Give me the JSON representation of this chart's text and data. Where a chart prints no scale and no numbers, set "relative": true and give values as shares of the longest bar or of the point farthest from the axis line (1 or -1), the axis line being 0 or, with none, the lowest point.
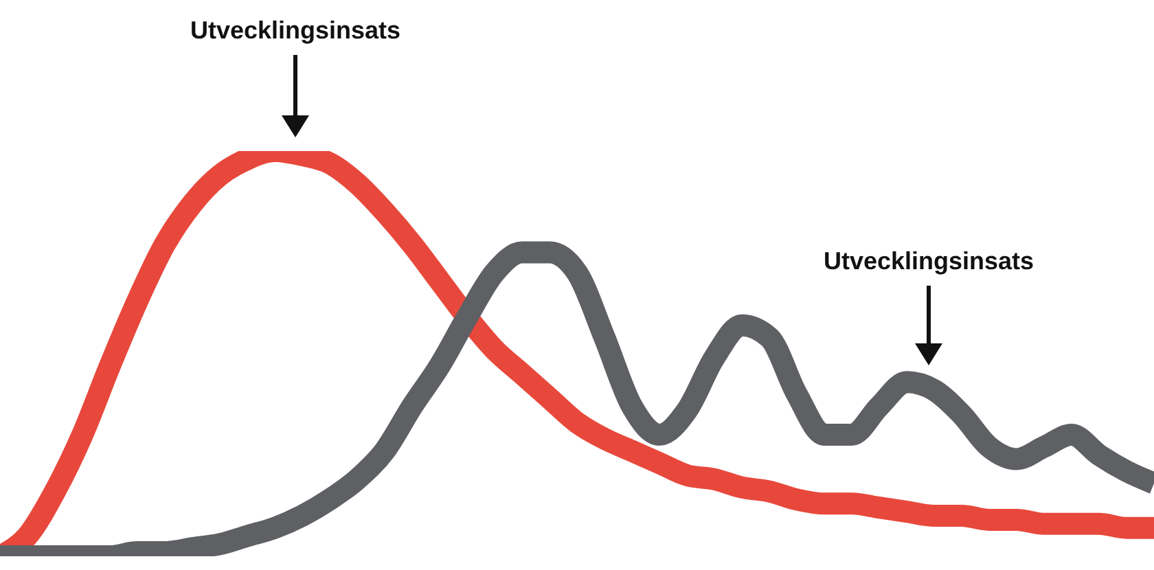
{
  "chart_data": {
    "type": "line",
    "relative": true,
    "categories": [
      null,
      null,
      null,
      null,
      null,
      null,
      null,
      null,
      null,
      null,
      null,
      null,
      null,
      null,
      null,
      null,
      null,
      null,
      null,
      null,
      null,
      null,
      null,
      null,
      null,
      null,
      null,
      null,
      null,
      null,
      null,
      null,
      null,
      null,
      null,
      null,
      null,
      null,
      null,
      null,
      null,
      null,
      null
    ],
    "series": [
      {
        "color": "#e8483c",
        "values": [
          0,
          0.05,
          0.16,
          0.3,
          0.47,
          0.63,
          0.77,
          0.87,
          0.94,
          0.98,
          1,
          0.99,
          0.97,
          0.92,
          0.85,
          0.77,
          0.68,
          0.59,
          0.51,
          0.45,
          0.39,
          0.33,
          0.29,
          0.26,
          0.23,
          0.2,
          0.19,
          0.17,
          0.16,
          0.14,
          0.13,
          0.13,
          0.12,
          0.11,
          0.1,
          0.1,
          0.09,
          0.09,
          0.08,
          0.08,
          0.08,
          0.07,
          0.07
        ]
      },
      {
        "color": "#5f6064",
        "values": [
          0,
          0,
          0,
          0,
          0,
          0.01,
          0.01,
          0.02,
          0.03,
          0.05,
          0.07,
          0.1,
          0.14,
          0.19,
          0.26,
          0.37,
          0.47,
          0.59,
          0.7,
          0.75,
          0.75,
          0.7,
          0.54,
          0.37,
          0.3,
          0.36,
          0.49,
          0.57,
          0.54,
          0.4,
          0.3,
          0.3,
          0.37,
          0.43,
          0.41,
          0.35,
          0.27,
          0.24,
          0.27,
          0.3,
          0.25,
          0.21,
          0.18
        ]
      }
    ],
    "annotations": [
      "Utvecklingsinsats",
      "Utvecklingsinsats"
    ]
  }
}
